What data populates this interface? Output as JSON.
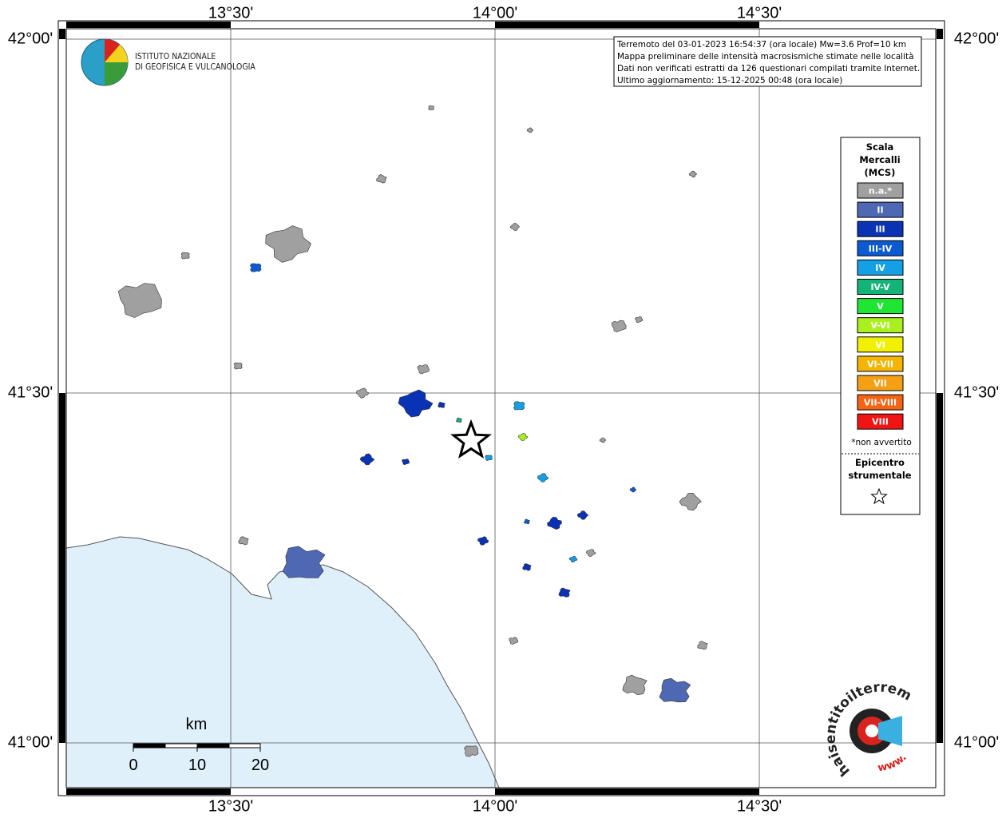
{
  "map": {
    "lon_labels": [
      "13°30'",
      "14°00'",
      "14°30'"
    ],
    "lat_labels": [
      "42°00'",
      "41°30'",
      "41°00'"
    ],
    "institute": [
      "ISTITUTO NAZIONALE",
      "DI GEOFISICA E VULCANOLOGIA"
    ],
    "info": [
      "Terremoto del 03-01-2023 16:54:37 (ora locale) Mw=3.6 Prof=10 km",
      "Mappa preliminare delle intensità macrosismiche stimate nelle località",
      "Dati non verificati estratti da 126 questionari compilati tramite Internet.",
      "Ultimo aggiornamento: 15-12-2025 00:48 (ora locale)"
    ],
    "legend": {
      "title": [
        "Scala",
        "Mercalli",
        "(MCS)"
      ],
      "items": [
        {
          "label": "n.a.*",
          "color": "#a0a0a0"
        },
        {
          "label": "II",
          "color": "#4e68b4"
        },
        {
          "label": "III",
          "color": "#0a32b4"
        },
        {
          "label": "III-IV",
          "color": "#0a5ad2"
        },
        {
          "label": "IV",
          "color": "#14a0e6"
        },
        {
          "label": "IV-V",
          "color": "#14b478"
        },
        {
          "label": "V",
          "color": "#1ee632"
        },
        {
          "label": "V-VI",
          "color": "#aaf01e"
        },
        {
          "label": "VI",
          "color": "#f0f000"
        },
        {
          "label": "VI-VII",
          "color": "#f5b400"
        },
        {
          "label": "VII",
          "color": "#f5a014"
        },
        {
          "label": "VII-VIII",
          "color": "#f56414"
        },
        {
          "label": "VIII",
          "color": "#f01414"
        }
      ],
      "note": "*non avvertito",
      "epicenter": [
        "Epicentro",
        "strumentale"
      ]
    },
    "scale": {
      "unit": "km",
      "labels": [
        0,
        10,
        20
      ]
    },
    "site": {
      "name": "haisentitoilterremoto.it",
      "prefix": "www."
    }
  }
}
